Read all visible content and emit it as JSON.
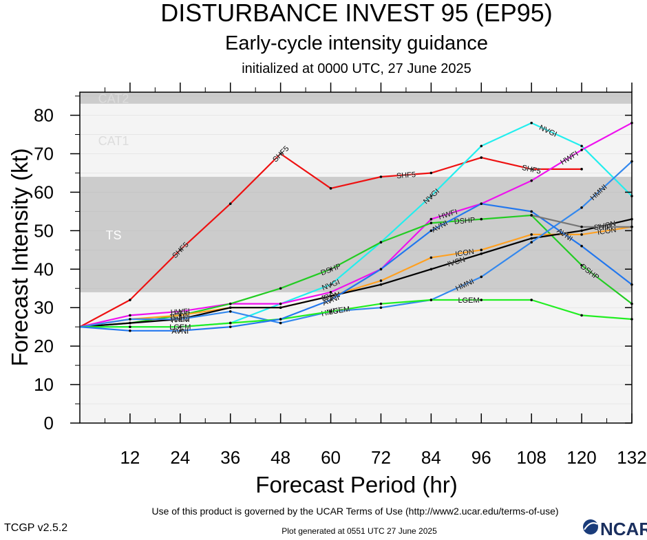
{
  "header": {
    "title": "DISTURBANCE INVEST 95 (EP95)",
    "subtitle": "Early-cycle intensity guidance",
    "initialized": "initialized at 0000 UTC, 27 June 2025"
  },
  "footer": {
    "terms": "Use of this product is governed by the UCAR Terms of Use (http://www2.ucar.edu/terms-of-use)",
    "version": "TCGP v2.5.2",
    "generated": "Plot generated at 0551 UTC   27 June 2025",
    "logo": "NCAR"
  },
  "chart_data": {
    "type": "line",
    "xlabel": "Forecast Period (hr)",
    "ylabel": "Forecast Intensity (kt)",
    "xlim": [
      0,
      132
    ],
    "ylim": [
      0,
      86
    ],
    "xticks": [
      12,
      24,
      36,
      48,
      60,
      72,
      84,
      96,
      108,
      120,
      132
    ],
    "yticks": [
      0,
      10,
      20,
      30,
      40,
      50,
      60,
      70,
      80
    ],
    "bands": [
      {
        "label": "TS",
        "from": 34,
        "to": 64,
        "color": "#cccccc"
      },
      {
        "label": "CAT1",
        "from": 64,
        "to": 83,
        "color": "#f4f4f4"
      },
      {
        "label": "CAT2",
        "from": 83,
        "to": 86,
        "color": "#cccccc"
      }
    ],
    "below_band_color": "#f4f4f4",
    "series": [
      {
        "name": "SHF5",
        "color": "#ee1111",
        "x": [
          0,
          12,
          24,
          36,
          48,
          60,
          72,
          84,
          96,
          108,
          120
        ],
        "y": [
          25,
          32,
          45,
          57,
          70,
          61,
          64,
          65,
          69,
          66,
          66
        ],
        "labels_at": [
          24,
          48,
          78,
          108
        ]
      },
      {
        "name": "NVGI",
        "color": "#22eeee",
        "x": [
          0,
          12,
          24,
          36,
          48,
          60,
          72,
          84,
          96,
          108,
          120,
          132
        ],
        "y": [
          25,
          25,
          25,
          26,
          31,
          36,
          47,
          59,
          72,
          78,
          72,
          59
        ],
        "labels_at": [
          60,
          84,
          112
        ]
      },
      {
        "name": "HWFI",
        "color": "#ee11ee",
        "x": [
          0,
          12,
          24,
          36,
          48,
          60,
          72,
          84,
          96,
          108,
          120,
          132
        ],
        "y": [
          25,
          28,
          29,
          31,
          31,
          34,
          40,
          53,
          57,
          63,
          71,
          78
        ],
        "labels_at": [
          24,
          88,
          117
        ]
      },
      {
        "name": "DSHP",
        "color": "#22cc22",
        "x": [
          0,
          12,
          24,
          36,
          48,
          60,
          72,
          84,
          96,
          108,
          120,
          132
        ],
        "y": [
          25,
          26,
          28,
          31,
          35,
          40,
          47,
          52,
          53,
          54,
          41,
          31
        ],
        "labels_at": [
          24,
          60,
          92,
          122
        ]
      },
      {
        "name": "ICON",
        "color": "#ffa020",
        "x": [
          0,
          12,
          24,
          36,
          48,
          60,
          72,
          84,
          96,
          108,
          120,
          132
        ],
        "y": [
          25,
          27,
          28,
          30,
          30,
          33,
          37,
          43,
          45,
          49,
          49,
          51
        ],
        "labels_at": [
          24,
          60,
          92,
          126
        ]
      },
      {
        "name": "IVCN",
        "color": "#000000",
        "x": [
          0,
          12,
          24,
          36,
          48,
          60,
          72,
          84,
          96,
          108,
          120,
          132
        ],
        "y": [
          25,
          26,
          27,
          30,
          30,
          33,
          36,
          40,
          44,
          48,
          50,
          53
        ],
        "labels_at": [
          24,
          60,
          90,
          126
        ]
      },
      {
        "name": "HMNI",
        "color": "#3388ee",
        "x": [
          0,
          12,
          24,
          36,
          48,
          60,
          72,
          84,
          96,
          108,
          120,
          132
        ],
        "y": [
          25,
          27,
          27,
          29,
          26,
          29,
          30,
          32,
          38,
          47,
          56,
          68
        ],
        "labels_at": [
          24,
          60,
          92,
          124
        ]
      },
      {
        "name": "LGEM",
        "color": "#22ee22",
        "x": [
          0,
          12,
          24,
          36,
          48,
          60,
          72,
          84,
          96,
          108,
          120,
          132
        ],
        "y": [
          25,
          25,
          25,
          26,
          27,
          29,
          31,
          32,
          32,
          32,
          28,
          27
        ],
        "labels_at": [
          24,
          62,
          93
        ]
      },
      {
        "name": "AVNI",
        "color": "#2277ee",
        "x": [
          0,
          12,
          24,
          36,
          48,
          60,
          72,
          84,
          96,
          108,
          120,
          132
        ],
        "y": [
          25,
          24,
          24,
          25,
          27,
          32,
          40,
          50,
          57,
          55,
          46,
          36
        ],
        "labels_at": [
          24,
          60,
          86,
          116
        ]
      },
      {
        "name": "SHIP",
        "color": "#777777",
        "x": [
          108,
          120,
          132
        ],
        "y": [
          54,
          51,
          51
        ],
        "labels_at": [
          125
        ]
      }
    ]
  }
}
